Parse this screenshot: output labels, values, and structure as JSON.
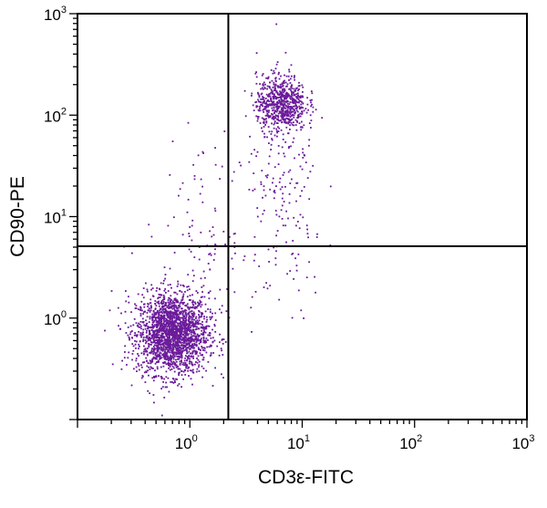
{
  "chart_data": {
    "type": "scatter",
    "xlabel": "CD3ε-FITC",
    "ylabel": "CD90-PE",
    "x_scale": "log",
    "y_scale": "log",
    "xlim": [
      0.1,
      1000
    ],
    "ylim": [
      0.1,
      1000
    ],
    "x_ticks": [
      {
        "base": "10",
        "exp": "0",
        "value": 1
      },
      {
        "base": "10",
        "exp": "1",
        "value": 10
      },
      {
        "base": "10",
        "exp": "2",
        "value": 100
      },
      {
        "base": "10",
        "exp": "3",
        "value": 1000
      }
    ],
    "y_ticks": [
      {
        "base": "10",
        "exp": "0",
        "value": 1
      },
      {
        "base": "10",
        "exp": "1",
        "value": 10
      },
      {
        "base": "10",
        "exp": "2",
        "value": 100
      },
      {
        "base": "10",
        "exp": "3",
        "value": 1000
      }
    ],
    "quadrant_gates": {
      "x": 2.2,
      "y": 5.1
    },
    "point_color": "#6a1a9a",
    "populations": [
      {
        "name": "",
        "center": [
          0.7,
          0.7
        ],
        "spread_decades": [
          0.16,
          0.2
        ],
        "count": 2100
      },
      {
        "name": "",
        "center": [
          6.5,
          130
        ],
        "spread_decades": [
          0.11,
          0.14
        ],
        "count": 700
      },
      {
        "name": "",
        "center": [
          7.0,
          12
        ],
        "spread_decades": [
          0.18,
          0.55
        ],
        "count": 160
      },
      {
        "name": "",
        "center": [
          1.3,
          6
        ],
        "spread_decades": [
          0.25,
          0.45
        ],
        "count": 120
      }
    ],
    "grid": false,
    "legend": "none"
  }
}
